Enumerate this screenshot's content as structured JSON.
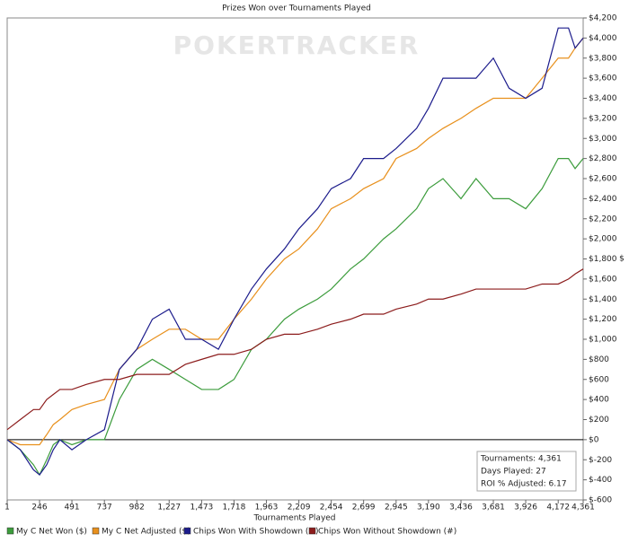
{
  "chart_data": {
    "type": "line",
    "title": "Prizes Won over Tournaments Played",
    "watermark": "POKERTRACKER",
    "x_label": "Tournaments Played",
    "y_label": "$",
    "x": [
      1,
      100,
      200,
      246,
      300,
      350,
      400,
      491,
      600,
      737,
      850,
      982,
      1100,
      1227,
      1350,
      1473,
      1600,
      1718,
      1850,
      1963,
      2100,
      2209,
      2350,
      2454,
      2600,
      2699,
      2850,
      2945,
      3100,
      3190,
      3300,
      3436,
      3550,
      3681,
      3800,
      3926,
      4050,
      4172,
      4250,
      4300,
      4361
    ],
    "series": [
      {
        "name": "My C Net Won ($)",
        "color": "#3c9c3c",
        "values": [
          0,
          -100,
          -250,
          -350,
          -200,
          -50,
          0,
          -50,
          0,
          0,
          400,
          700,
          800,
          700,
          600,
          500,
          500,
          600,
          900,
          1000,
          1200,
          1300,
          1400,
          1500,
          1700,
          1800,
          2000,
          2100,
          2300,
          2500,
          2600,
          2400,
          2600,
          2400,
          2400,
          2300,
          2500,
          2800,
          2800,
          2700,
          2800
        ]
      },
      {
        "name": "My C Net Adjusted ($)",
        "color": "#e8901c",
        "values": [
          0,
          -50,
          -50,
          -50,
          50,
          150,
          200,
          300,
          350,
          400,
          700,
          900,
          1000,
          1100,
          1100,
          1000,
          1000,
          1200,
          1400,
          1600,
          1800,
          1900,
          2100,
          2300,
          2400,
          2500,
          2600,
          2800,
          2900,
          3000,
          3100,
          3200,
          3300,
          3400,
          3400,
          3400,
          3600,
          3800,
          3800,
          3900,
          4000
        ]
      },
      {
        "name": "Chips Won With Showdown (#)",
        "color": "#1c1c8c",
        "values": [
          0,
          -100,
          -300,
          -350,
          -250,
          -100,
          0,
          -100,
          0,
          100,
          700,
          900,
          1200,
          1300,
          1000,
          1000,
          900,
          1200,
          1500,
          1700,
          1900,
          2100,
          2300,
          2500,
          2600,
          2800,
          2800,
          2900,
          3100,
          3300,
          3600,
          3600,
          3600,
          3800,
          3500,
          3400,
          3500,
          4100,
          4100,
          3900,
          4000
        ]
      },
      {
        "name": "Chips Won Without Showdown (#)",
        "color": "#8c1c1c",
        "values": [
          100,
          200,
          300,
          300,
          400,
          450,
          500,
          500,
          550,
          600,
          600,
          650,
          650,
          650,
          750,
          800,
          850,
          850,
          900,
          1000,
          1050,
          1050,
          1100,
          1150,
          1200,
          1250,
          1250,
          1300,
          1350,
          1400,
          1400,
          1450,
          1500,
          1500,
          1500,
          1500,
          1550,
          1550,
          1600,
          1650,
          1700
        ]
      }
    ],
    "xlim": [
      1,
      4361
    ],
    "xticks": [
      1,
      246,
      491,
      737,
      982,
      {
        "value": 1227,
        "label": "1,227"
      },
      {
        "value": 1473,
        "label": "1,473"
      },
      {
        "value": 1718,
        "label": "1,718"
      },
      {
        "value": 1963,
        "label": "1,963"
      },
      {
        "value": 2209,
        "label": "2,209"
      },
      {
        "value": 2454,
        "label": "2,454"
      },
      {
        "value": 2699,
        "label": "2,699"
      },
      {
        "value": 2945,
        "label": "2,945"
      },
      {
        "value": 3190,
        "label": "3,190"
      },
      {
        "value": 3436,
        "label": "3,436"
      },
      {
        "value": 3681,
        "label": "3,681"
      },
      {
        "value": 3926,
        "label": "3,926"
      },
      {
        "value": 4172,
        "label": "4,172"
      },
      {
        "value": 4361,
        "label": "4,361"
      }
    ],
    "ylim": [
      -600,
      4200
    ],
    "yticks": [
      {
        "value": -600,
        "label": "$-600"
      },
      {
        "value": -400,
        "label": "$-400"
      },
      {
        "value": -200,
        "label": "$-200"
      },
      {
        "value": 0,
        "label": "$0"
      },
      {
        "value": 200,
        "label": "$200"
      },
      {
        "value": 400,
        "label": "$400"
      },
      {
        "value": 600,
        "label": "$600"
      },
      {
        "value": 800,
        "label": "$800"
      },
      {
        "value": 1000,
        "label": "$1,000"
      },
      {
        "value": 1200,
        "label": "$1,200"
      },
      {
        "value": 1400,
        "label": "$1,400"
      },
      {
        "value": 1600,
        "label": "$1,600"
      },
      {
        "value": 1800,
        "label": "$1,800"
      },
      {
        "value": 2000,
        "label": "$2,000"
      },
      {
        "value": 2200,
        "label": "$2,200"
      },
      {
        "value": 2400,
        "label": "$2,400"
      },
      {
        "value": 2600,
        "label": "$2,600"
      },
      {
        "value": 2800,
        "label": "$2,800"
      },
      {
        "value": 3000,
        "label": "$3,000"
      },
      {
        "value": 3200,
        "label": "$3,200"
      },
      {
        "value": 3400,
        "label": "$3,400"
      },
      {
        "value": 3600,
        "label": "$3,600"
      },
      {
        "value": 3800,
        "label": "$3,800"
      },
      {
        "value": 4000,
        "label": "$4,000"
      },
      {
        "value": 4200,
        "label": "$4,200"
      }
    ],
    "y_axis_side": "right",
    "zero_line": true,
    "legend": "bottom",
    "info_box": [
      "Tournaments: 4,361",
      "Days Played: 27",
      "ROI % Adjusted: 6.17"
    ]
  }
}
